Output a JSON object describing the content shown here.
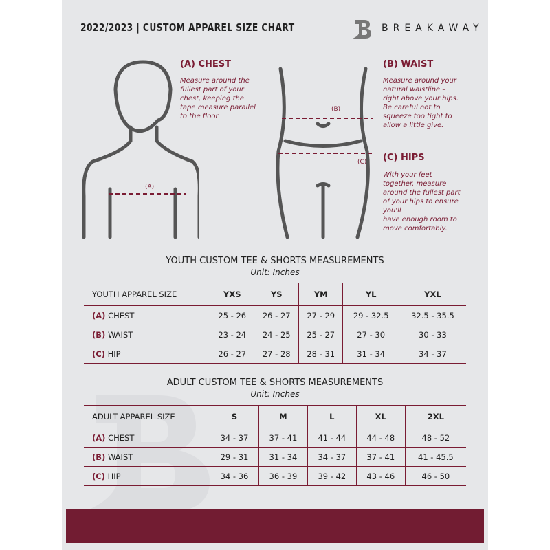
{
  "header": {
    "title": "2022/2023  |  CUSTOM APPAREL SIZE CHART",
    "brand": "BREAKAWAY"
  },
  "measures": [
    {
      "heading": "(A) CHEST",
      "text": "Measure around the\nfullest part of your\nchest, keeping the\ntape measure parallel\nto the floor",
      "marker": "(A)"
    },
    {
      "heading": "(B) WAIST",
      "text": "Measure around your\nnatural waistline –\nright above your hips.\nBe careful not to\nsqueeze too tight to\nallow a little give.",
      "marker": "(B)"
    },
    {
      "heading": "(C) HIPS",
      "text": "With your feet\ntogether, measure\naround the fullest part\nof your hips to ensure\nyou'll\nhave enough room to\nmove comfortably.",
      "marker": "(C)"
    }
  ],
  "youth": {
    "title": "YOUTH CUSTOM TEE & SHORTS MEASUREMENTS",
    "unit": "Unit: Inches",
    "header": [
      "YOUTH APPAREL SIZE",
      "YXS",
      "YS",
      "YM",
      "YL",
      "YXL"
    ],
    "rows": [
      {
        "code": "(A)",
        "label": "CHEST",
        "values": [
          "25 - 26",
          "26 - 27",
          "27 - 29",
          "29 - 32.5",
          "32.5 - 35.5"
        ]
      },
      {
        "code": "(B)",
        "label": "WAIST",
        "values": [
          "23 - 24",
          "24 - 25",
          "25 - 27",
          "27 - 30",
          "30 - 33"
        ]
      },
      {
        "code": "(C)",
        "label": "HIP",
        "values": [
          "26 - 27",
          "27 - 28",
          "28 - 31",
          "31 - 34",
          "34 - 37"
        ]
      }
    ]
  },
  "adult": {
    "title": "ADULT CUSTOM TEE & SHORTS MEASUREMENTS",
    "unit": "Unit: Inches",
    "header": [
      "ADULT APPAREL SIZE",
      "S",
      "M",
      "L",
      "XL",
      "2XL"
    ],
    "rows": [
      {
        "code": "(A)",
        "label": "CHEST",
        "values": [
          "34 - 37",
          "37 - 41",
          "41 - 44",
          "44 - 48",
          "48 - 52"
        ]
      },
      {
        "code": "(B)",
        "label": "WAIST",
        "values": [
          "29 - 31",
          "31 - 34",
          "34 - 37",
          "37 - 41",
          "41 - 45.5"
        ]
      },
      {
        "code": "(C)",
        "label": "HIP",
        "values": [
          "34 - 36",
          "36 - 39",
          "39 - 42",
          "43 - 46",
          "46 - 50"
        ]
      }
    ]
  },
  "colors": {
    "accent": "#7a1c33",
    "background": "#e6e7e9"
  }
}
